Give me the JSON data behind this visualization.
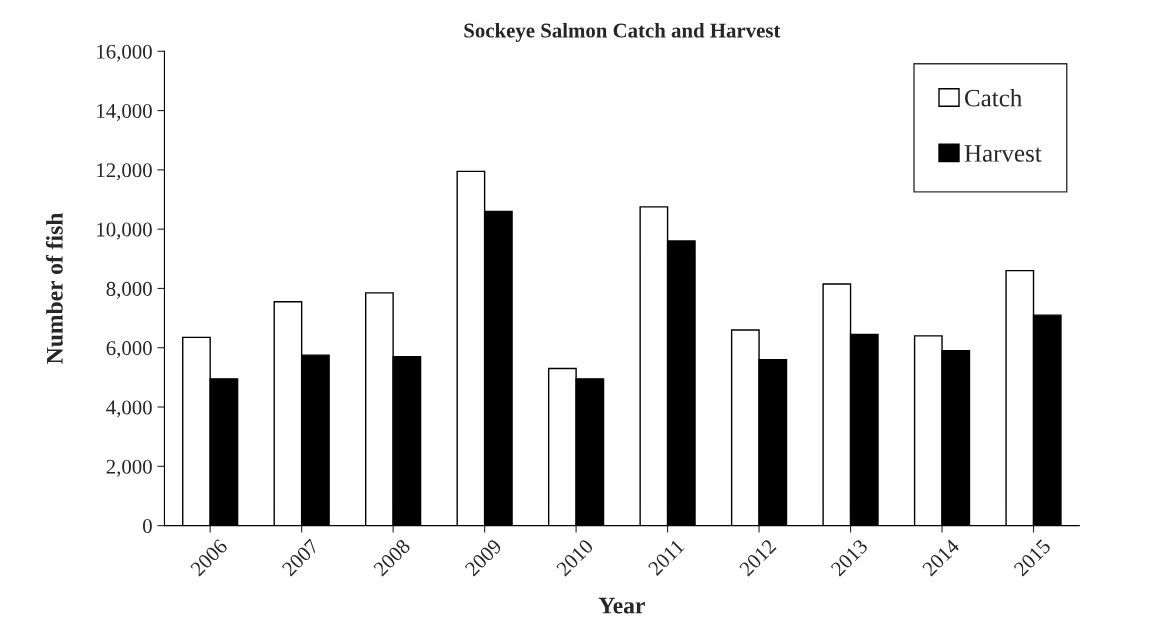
{
  "chart_data": {
    "type": "bar",
    "title": "Sockeye Salmon Catch and Harvest",
    "xlabel": "Year",
    "ylabel": "Number of fish",
    "categories": [
      "2006",
      "2007",
      "2008",
      "2009",
      "2010",
      "2011",
      "2012",
      "2013",
      "2014",
      "2015"
    ],
    "series": [
      {
        "name": "Catch",
        "color": "#ffffff",
        "values": [
          6350,
          7550,
          7850,
          11950,
          5300,
          10750,
          6600,
          8150,
          6400,
          8600
        ]
      },
      {
        "name": "Harvest",
        "color": "#000000",
        "values": [
          4950,
          5750,
          5700,
          10600,
          4950,
          9600,
          5600,
          6450,
          5900,
          7100
        ]
      }
    ],
    "ylim": [
      0,
      16000
    ],
    "yticks": [
      {
        "value": 0,
        "label": "0"
      },
      {
        "value": 2000,
        "label": "2,000"
      },
      {
        "value": 4000,
        "label": "4,000"
      },
      {
        "value": 6000,
        "label": "6,000"
      },
      {
        "value": 8000,
        "label": "8,000"
      },
      {
        "value": 10000,
        "label": "10,000"
      },
      {
        "value": 12000,
        "label": "12,000"
      },
      {
        "value": 14000,
        "label": "14,000"
      },
      {
        "value": 16000,
        "label": "16,000"
      }
    ],
    "grid": false,
    "legend": "top right"
  }
}
